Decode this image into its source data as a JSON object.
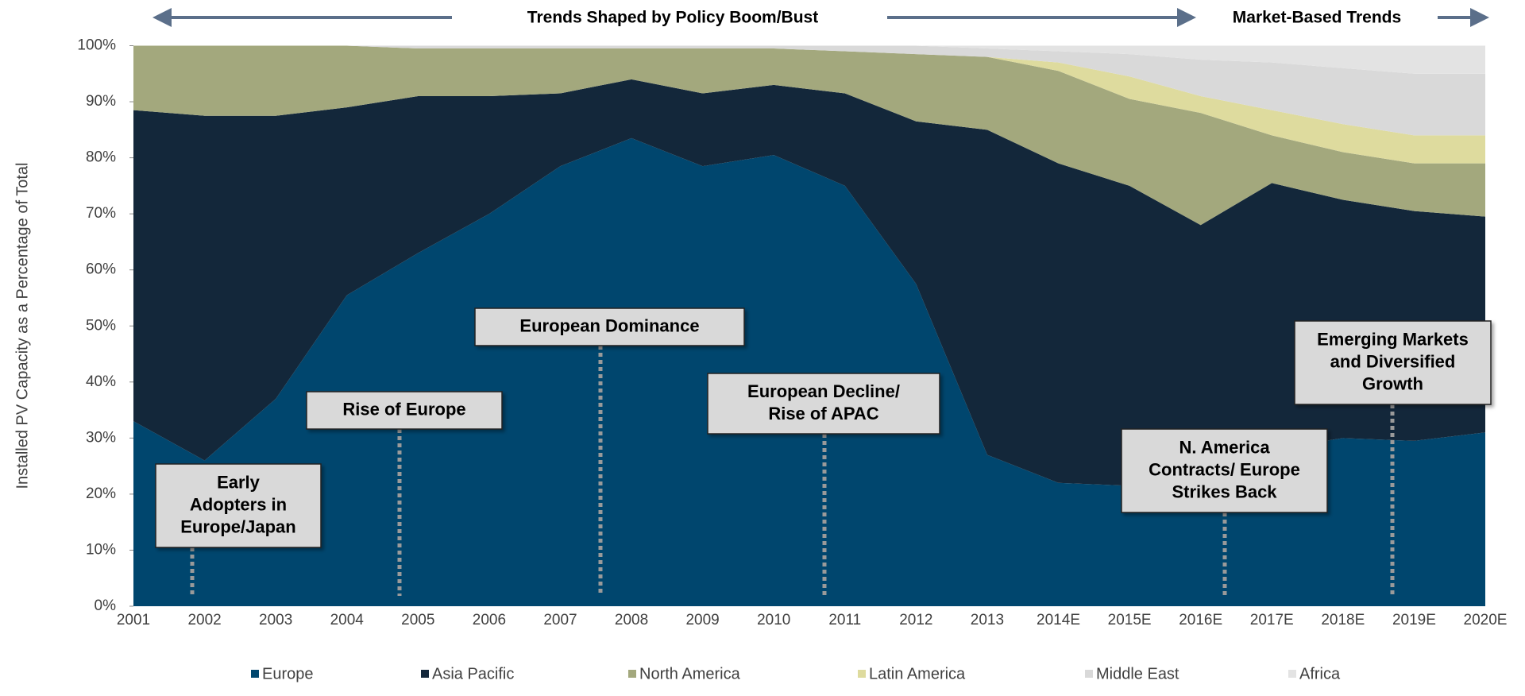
{
  "chart_data": {
    "type": "stacked_area",
    "header": [
      "Trends Shaped by Policy Boom/Bust",
      "Market-Based Trends"
    ],
    "y_label": "Installed PV Capacity as a Percentage of Total",
    "categories": [
      "2001",
      "2002",
      "2003",
      "2004",
      "2005",
      "2006",
      "2007",
      "2008",
      "2009",
      "2010",
      "2011",
      "2012",
      "2013",
      "2014E",
      "2015E",
      "2016E",
      "2017E",
      "2018E",
      "2019E",
      "2020E"
    ],
    "series": [
      {
        "name": "Europe",
        "color": "#00466e",
        "values": [
          33,
          26,
          37,
          55.5,
          63,
          70,
          78.5,
          83.5,
          78.5,
          80.5,
          75,
          57.5,
          27,
          22,
          21.5,
          24,
          28,
          30,
          29.5,
          31
        ]
      },
      {
        "name": "Asia Pacific",
        "color": "#13273a",
        "values": [
          55.5,
          61.5,
          50.5,
          33.5,
          28,
          21,
          13,
          10.5,
          13,
          12.5,
          16.5,
          29,
          58,
          57,
          53.5,
          44,
          47.5,
          42.5,
          41,
          38.5
        ]
      },
      {
        "name": "North America",
        "color": "#a3a87d",
        "values": [
          11.5,
          12.5,
          12.5,
          11,
          8.5,
          8.5,
          8,
          5.5,
          8,
          6.5,
          7.5,
          12,
          13,
          16.5,
          15.5,
          20,
          8.5,
          8.5,
          8.5,
          9.5
        ]
      },
      {
        "name": "Latin America",
        "color": "#dedb9e",
        "values": [
          0,
          0,
          0,
          0,
          0,
          0,
          0,
          0,
          0,
          0,
          0,
          0,
          0,
          1.5,
          4,
          3,
          4.5,
          5,
          5,
          5
        ]
      },
      {
        "name": "Middle East",
        "color": "#d9d9d9",
        "values": [
          0,
          0,
          0,
          0,
          0.5,
          0.5,
          0.5,
          0.5,
          0.5,
          0.5,
          1,
          1.5,
          1.5,
          2,
          4,
          6.5,
          8.5,
          10,
          11,
          11
        ]
      },
      {
        "name": "Africa",
        "color": "#e3e3e3",
        "values": [
          0,
          0,
          0,
          0,
          0,
          0,
          0,
          0,
          0,
          0,
          0,
          0,
          0.5,
          1,
          1.5,
          2.5,
          3,
          4,
          5,
          5
        ]
      }
    ],
    "ylim": [
      0,
      100
    ],
    "yticks": [
      {
        "value": 0,
        "label": "0%"
      },
      {
        "value": 10,
        "label": "10%"
      },
      {
        "value": 20,
        "label": "20%"
      },
      {
        "value": 30,
        "label": "30%"
      },
      {
        "value": 40,
        "label": "40%"
      },
      {
        "value": 50,
        "label": "50%"
      },
      {
        "value": 60,
        "label": "60%"
      },
      {
        "value": 70,
        "label": "70%"
      },
      {
        "value": 80,
        "label": "80%"
      },
      {
        "value": 90,
        "label": "90%"
      },
      {
        "value": 100,
        "label": "100%"
      }
    ],
    "annotations": [
      [
        "Early",
        "Adopters in",
        "Europe/Japan"
      ],
      [
        "Rise of Europe"
      ],
      [
        "European Dominance"
      ],
      [
        "European Decline/",
        "Rise of APAC"
      ],
      [
        "N. America",
        "Contracts/ Europe",
        "Strikes Back"
      ],
      [
        "Emerging Markets",
        "and Diversified",
        "Growth"
      ]
    ]
  }
}
